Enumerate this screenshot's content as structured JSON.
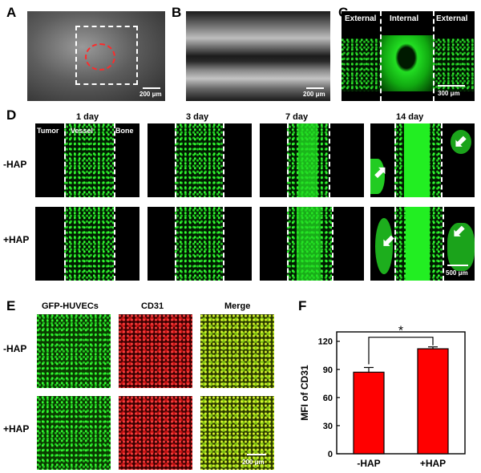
{
  "panel_letters": {
    "a": "A",
    "b": "B",
    "c": "C",
    "d": "D",
    "e": "E",
    "f": "F"
  },
  "panel_a": {
    "scale": "200 μm"
  },
  "panel_b": {
    "scale": "200 μm"
  },
  "panel_c": {
    "labels": [
      "External",
      "Internal",
      "External"
    ],
    "scale": "300 μm"
  },
  "panel_d": {
    "days": [
      "1 day",
      "3 day",
      "7 day",
      "14 day"
    ],
    "region_labels": [
      "Tumor",
      "Vessel",
      "Bone"
    ],
    "rows": [
      "-HAP",
      "+HAP"
    ],
    "scale": "500 μm"
  },
  "panel_e": {
    "columns": [
      "GFP-HUVECs",
      "CD31",
      "Merge"
    ],
    "rows": [
      "-HAP",
      "+HAP"
    ],
    "scale": "200 μm"
  },
  "chart_data": {
    "type": "bar",
    "categories": [
      "-HAP",
      "+HAP"
    ],
    "values": [
      87,
      112
    ],
    "errors": [
      5,
      2
    ],
    "ylabel": "MFI of CD31",
    "xlabel": "",
    "ylim": [
      0,
      130
    ],
    "yticks": [
      0,
      30,
      60,
      90,
      120
    ],
    "significance": "*",
    "bar_color": "#ff0000"
  }
}
